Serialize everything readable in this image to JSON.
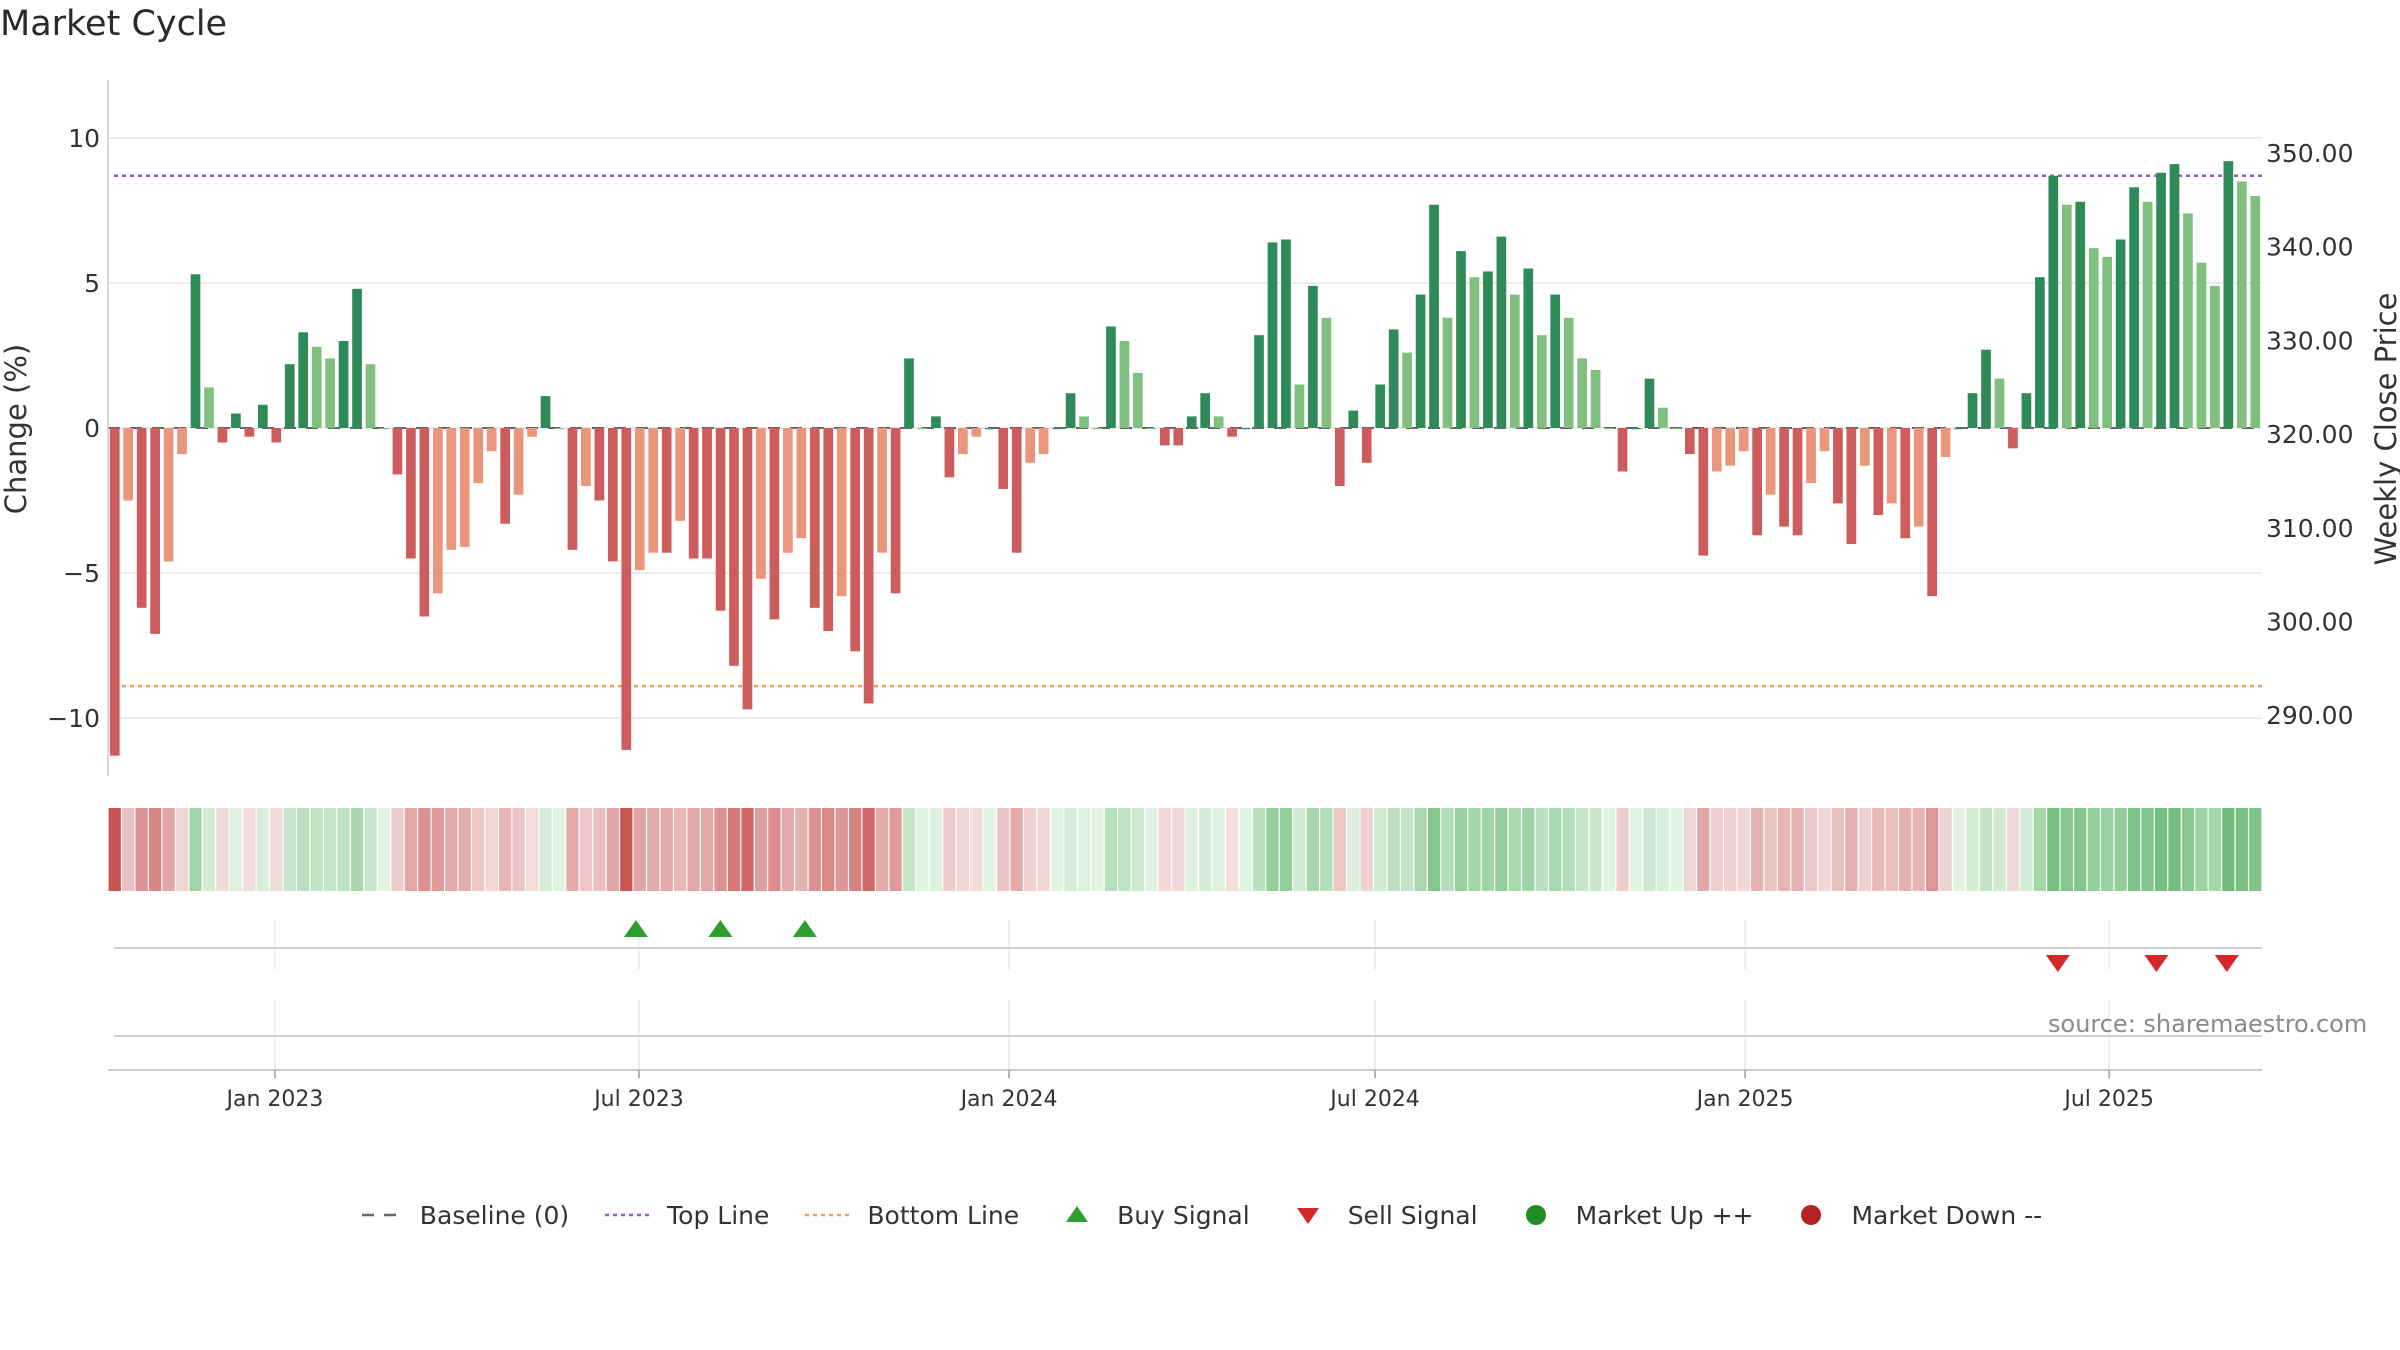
{
  "chart_data": {
    "type": "bar",
    "title": "Market Cycle",
    "ylabel_left": "Change (%)",
    "ylabel_right": "Weekly Close Price",
    "ylim_left": [
      -12.0,
      12.0
    ],
    "ylim_right": [
      283.5,
      357.8
    ],
    "yticks_left": [
      10,
      5,
      0,
      -5,
      -10
    ],
    "yticks_left_labels": [
      "10",
      "5",
      "0",
      "−5",
      "−10"
    ],
    "yticks_right": [
      350,
      340,
      330,
      320,
      310,
      300,
      290
    ],
    "yticks_right_labels": [
      "350.00",
      "340.00",
      "330.00",
      "320.00",
      "310.00",
      "300.00",
      "290.00"
    ],
    "x_start": "2022-10-10",
    "x_end": "2025-09-08",
    "x_ticks": [
      "2023-01-01",
      "2023-07-01",
      "2024-01-01",
      "2024-07-01",
      "2025-01-01",
      "2025-07-01"
    ],
    "x_tick_labels": [
      "Jan 2023",
      "Jul 2023",
      "Jan 2024",
      "Jul 2024",
      "Jan 2025",
      "Jul 2025"
    ],
    "top_line": 8.7,
    "bottom_line": -8.9,
    "baseline": 0,
    "weekly_change": [
      -11.3,
      -2.5,
      -6.2,
      -7.1,
      -4.6,
      -0.9,
      5.3,
      1.4,
      -0.5,
      0.5,
      -0.3,
      0.8,
      -0.5,
      2.2,
      3.3,
      2.8,
      2.4,
      3.0,
      4.8,
      2.2,
      0,
      -1.6,
      -4.5,
      -6.5,
      -5.7,
      -4.2,
      -4.1,
      -1.9,
      -0.8,
      -3.3,
      -2.3,
      -0.3,
      1.1,
      0,
      -4.2,
      -2.0,
      -2.5,
      -4.6,
      -11.1,
      -4.9,
      -4.3,
      -4.3,
      -3.2,
      -4.5,
      -4.5,
      -6.3,
      -8.2,
      -9.7,
      -5.2,
      -6.6,
      -4.3,
      -3.8,
      -6.2,
      -7.0,
      -5.8,
      -7.7,
      -9.5,
      -4.3,
      -5.7,
      2.4,
      0,
      0.4,
      -1.7,
      -0.9,
      -0.3,
      0,
      -2.1,
      -4.3,
      -1.2,
      -0.9,
      0,
      1.2,
      0.4,
      0,
      3.5,
      3.0,
      1.9,
      0,
      -0.6,
      -0.6,
      0.4,
      1.2,
      0.4,
      -0.3,
      0,
      3.2,
      6.4,
      6.5,
      1.5,
      4.9,
      3.8,
      -2.0,
      0.6,
      -1.2,
      1.5,
      3.4,
      2.6,
      4.6,
      7.7,
      3.8,
      6.1,
      5.2,
      5.4,
      6.6,
      4.6,
      5.5,
      3.2,
      4.6,
      3.8,
      2.4,
      2.0,
      0,
      -1.5,
      0,
      1.7,
      0.7,
      0,
      -0.9,
      -4.4,
      -1.5,
      -1.3,
      -0.8,
      -3.7,
      -2.3,
      -3.4,
      -3.7,
      -1.9,
      -0.8,
      -2.6,
      -4.0,
      -1.3,
      -3.0,
      -2.6,
      -3.8,
      -3.4,
      -5.8,
      -1.0,
      0,
      1.2,
      2.7,
      1.7,
      -0.7,
      1.2,
      5.2,
      8.7,
      7.7,
      7.8,
      6.2,
      5.9,
      6.5,
      8.3,
      7.8,
      8.8,
      9.1,
      7.4,
      5.7,
      4.9,
      9.2,
      8.5,
      8.0
    ],
    "signals": {
      "buy": [
        "2023-06-26",
        "2023-08-07",
        "2023-09-18"
      ],
      "sell": [
        "2025-06-02",
        "2025-07-21",
        "2025-08-25"
      ]
    },
    "colors": {
      "up_strong": "#2e8b57",
      "up_light": "#7fc07f",
      "down_strong": "#cd5c5c",
      "down_light": "#e9967a",
      "top_line": "#9b59d0",
      "bottom_line": "#f0a050",
      "buy": "#2ca02c",
      "sell": "#d62728",
      "market_up": "#228b22",
      "market_down": "#b22222",
      "grid": "#e6e6e6",
      "baseline": "#666666"
    },
    "legend": [
      {
        "key": "baseline",
        "label": "Baseline (0)",
        "symbol": "dash",
        "color": "#666666"
      },
      {
        "key": "top",
        "label": "Top Line",
        "symbol": "dot",
        "color": "#9b59d0"
      },
      {
        "key": "bottom",
        "label": "Bottom Line",
        "symbol": "dot",
        "color": "#f0a050"
      },
      {
        "key": "buy",
        "label": "Buy Signal",
        "symbol": "triangle-up",
        "color": "#2ca02c"
      },
      {
        "key": "sell",
        "label": "Sell Signal",
        "symbol": "triangle-down",
        "color": "#d62728"
      },
      {
        "key": "mup",
        "label": "Market Up ++",
        "symbol": "circle",
        "color": "#228b22"
      },
      {
        "key": "mdown",
        "label": "Market Down --",
        "symbol": "circle",
        "color": "#b22222"
      }
    ],
    "source": "source: sharemaestro.com",
    "grid": true,
    "legend_position": "bottom"
  }
}
